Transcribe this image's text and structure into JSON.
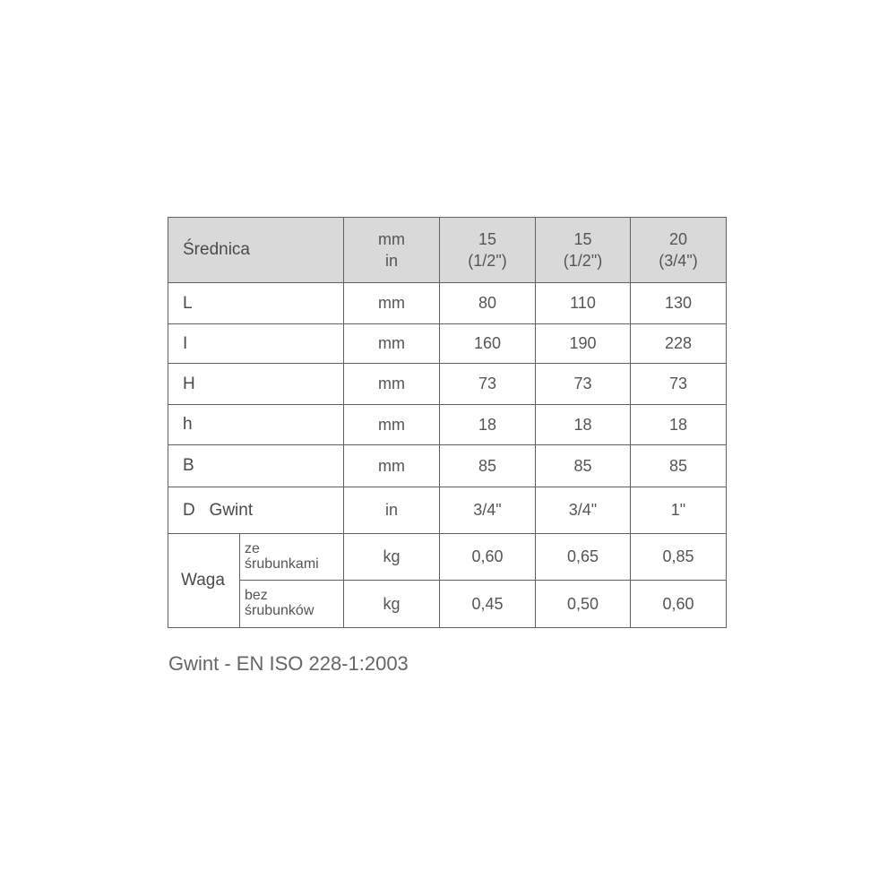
{
  "table": {
    "header": {
      "label": "Średnica",
      "unit_line1": "mm",
      "unit_line2": "in",
      "sizes": [
        {
          "mm": "15",
          "in": "(1/2\")"
        },
        {
          "mm": "15",
          "in": "(1/2\")"
        },
        {
          "mm": "20",
          "in": "(3/4\")"
        }
      ]
    },
    "rows": [
      {
        "label": "L",
        "unit": "mm",
        "values": [
          "80",
          "110",
          "130"
        ]
      },
      {
        "label": "I",
        "unit": "mm",
        "values": [
          "160",
          "190",
          "228"
        ]
      },
      {
        "label": "H",
        "unit": "mm",
        "values": [
          "73",
          "73",
          "73"
        ]
      },
      {
        "label": "h",
        "unit": "mm",
        "values": [
          "18",
          "18",
          "18"
        ]
      },
      {
        "label": "B",
        "unit": "mm",
        "values": [
          "85",
          "85",
          "85"
        ]
      },
      {
        "label": "D   Gwint",
        "unit": "in",
        "values": [
          "3/4\"",
          "3/4\"",
          "1\""
        ]
      }
    ],
    "waga": {
      "label": "Waga",
      "rows": [
        {
          "sub_line1": "ze",
          "sub_line2": "śrubunkami",
          "unit": "kg",
          "values": [
            "0,60",
            "0,65",
            "0,85"
          ]
        },
        {
          "sub_line1": "bez",
          "sub_line2": "śrubunków",
          "unit": "kg",
          "values": [
            "0,45",
            "0,50",
            "0,60"
          ]
        }
      ]
    }
  },
  "note": "Gwint - EN ISO 228-1:2003"
}
